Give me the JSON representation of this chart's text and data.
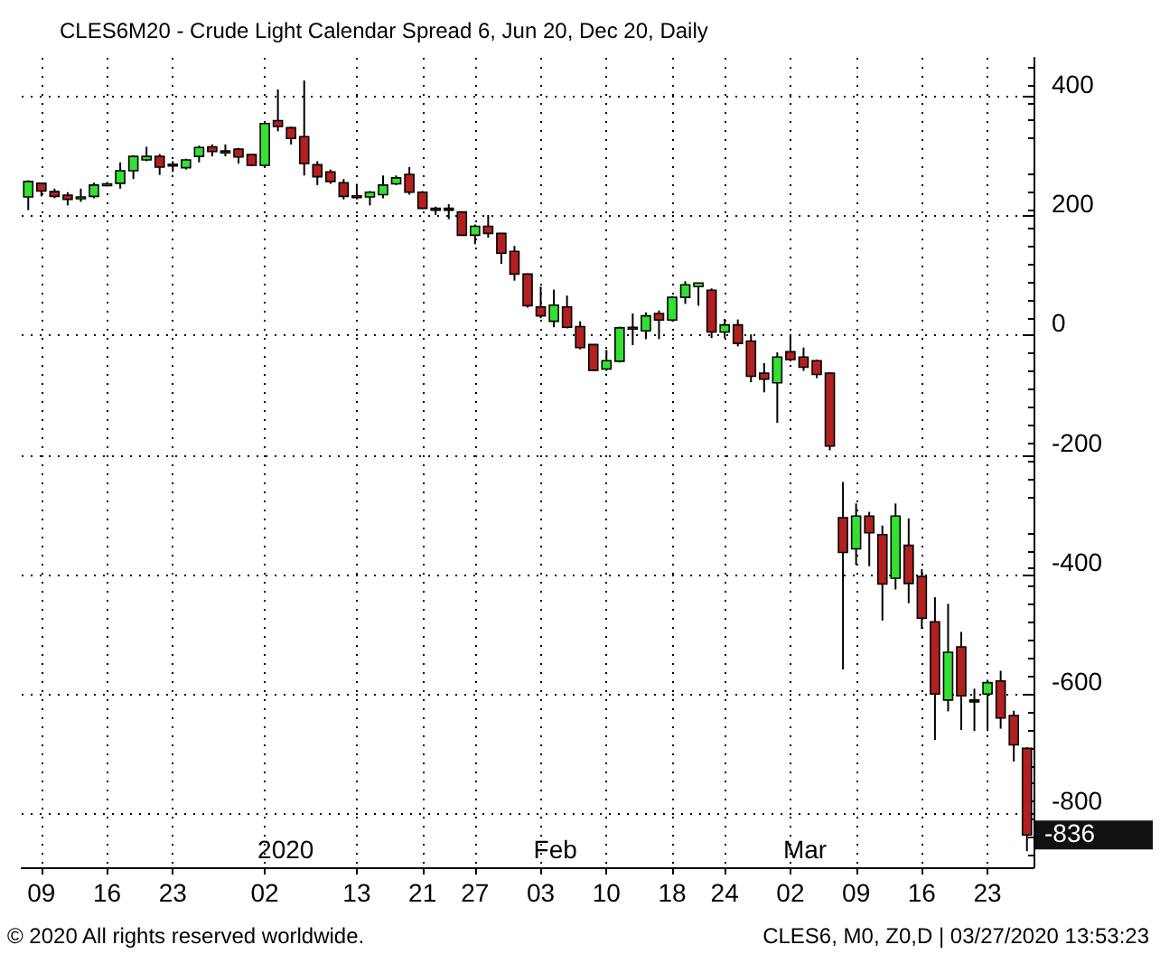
{
  "chart_data": {
    "type": "candlestick",
    "title": "CLES6M20 - Crude Light Calendar Spread 6, Jun 20, Dec 20, Daily",
    "categories": [
      null,
      "09",
      null,
      null,
      null,
      null,
      "16",
      null,
      null,
      null,
      null,
      "23",
      null,
      null,
      null,
      null,
      null,
      null,
      "02",
      null,
      null,
      null,
      null,
      null,
      null,
      "13",
      null,
      null,
      null,
      null,
      "21",
      null,
      null,
      null,
      "27",
      null,
      null,
      null,
      null,
      "03",
      null,
      null,
      null,
      null,
      "10",
      null,
      null,
      null,
      null,
      "18",
      null,
      null,
      null,
      "24",
      null,
      null,
      null,
      null,
      "02",
      null,
      null,
      null,
      null,
      "09",
      null,
      null,
      null,
      null,
      "16",
      null,
      null,
      null,
      null,
      "23",
      null,
      null,
      null
    ],
    "ohlc": [
      [
        232,
        260,
        210,
        258
      ],
      [
        255,
        256,
        233,
        242
      ],
      [
        241,
        246,
        230,
        233
      ],
      [
        235,
        240,
        218,
        228
      ],
      [
        230,
        246,
        224,
        232
      ],
      [
        233,
        256,
        230,
        252
      ],
      [
        252,
        257,
        250,
        254
      ],
      [
        255,
        290,
        246,
        276
      ],
      [
        276,
        302,
        262,
        300
      ],
      [
        294,
        316,
        292,
        300
      ],
      [
        300,
        304,
        269,
        282
      ],
      [
        287,
        292,
        274,
        286
      ],
      [
        281,
        296,
        278,
        294
      ],
      [
        300,
        318,
        290,
        315
      ],
      [
        316,
        320,
        300,
        308
      ],
      [
        308,
        320,
        300,
        309
      ],
      [
        312,
        314,
        288,
        299
      ],
      [
        303,
        304,
        284,
        285
      ],
      [
        285,
        357,
        284,
        355
      ],
      [
        360,
        412,
        342,
        350
      ],
      [
        348,
        350,
        320,
        330
      ],
      [
        333,
        427,
        268,
        288
      ],
      [
        286,
        292,
        252,
        266
      ],
      [
        274,
        278,
        254,
        258
      ],
      [
        256,
        262,
        228,
        233
      ],
      [
        234,
        254,
        228,
        233
      ],
      [
        232,
        242,
        218,
        240
      ],
      [
        236,
        268,
        230,
        252
      ],
      [
        254,
        268,
        252,
        264
      ],
      [
        270,
        282,
        236,
        240
      ],
      [
        240,
        242,
        212,
        213
      ],
      [
        212,
        216,
        202,
        213
      ],
      [
        213,
        220,
        195,
        212
      ],
      [
        207,
        208,
        167,
        168
      ],
      [
        168,
        186,
        153,
        183
      ],
      [
        183,
        202,
        164,
        171
      ],
      [
        171,
        172,
        120,
        138
      ],
      [
        141,
        150,
        92,
        103
      ],
      [
        103,
        104,
        47,
        50
      ],
      [
        48,
        82,
        29,
        33
      ],
      [
        24,
        77,
        14,
        51
      ],
      [
        48,
        67,
        12,
        14
      ],
      [
        15,
        24,
        -23,
        -20
      ],
      [
        -15,
        -15,
        -59,
        -58
      ],
      [
        -56,
        -24,
        -59,
        -42
      ],
      [
        -43,
        15,
        -45,
        13
      ],
      [
        14,
        37,
        -16,
        13
      ],
      [
        8,
        39,
        -6,
        33
      ],
      [
        37,
        42,
        -6,
        26
      ],
      [
        26,
        66,
        24,
        64
      ],
      [
        64,
        91,
        53,
        85
      ],
      [
        82,
        88,
        50,
        88
      ],
      [
        76,
        79,
        -4,
        6
      ],
      [
        6,
        28,
        -4,
        18
      ],
      [
        18,
        27,
        -18,
        -13
      ],
      [
        -9,
        2,
        -78,
        -68
      ],
      [
        -63,
        -46,
        -95,
        -73
      ],
      [
        -79,
        -28,
        -146,
        -36
      ],
      [
        -27,
        1,
        -43,
        -40
      ],
      [
        -36,
        -20,
        -59,
        -53
      ],
      [
        -42,
        -40,
        -71,
        -65
      ],
      [
        -63,
        -61,
        -192,
        -185
      ],
      [
        -305,
        -245,
        -559,
        -363
      ],
      [
        -357,
        -281,
        -384,
        -302
      ],
      [
        -302,
        -295,
        -386,
        -330
      ],
      [
        -333,
        -318,
        -477,
        -416
      ],
      [
        -406,
        -281,
        -425,
        -302
      ],
      [
        -351,
        -306,
        -448,
        -415
      ],
      [
        -403,
        -391,
        -491,
        -473
      ],
      [
        -479,
        -438,
        -677,
        -600
      ],
      [
        -610,
        -449,
        -629,
        -530
      ],
      [
        -521,
        -496,
        -660,
        -603
      ],
      [
        -610,
        -591,
        -662,
        -611
      ],
      [
        -600,
        -576,
        -662,
        -581
      ],
      [
        -578,
        -561,
        -658,
        -640
      ],
      [
        -636,
        -628,
        -713,
        -685
      ],
      [
        -691,
        -689,
        -863,
        -836
      ]
    ],
    "colors": [
      "#33e033",
      "#b22020",
      "#b22020",
      "#b22020",
      "#33e033",
      "#33e033",
      "#33e033",
      "#33e033",
      "#33e033",
      "#33e033",
      "#b22020",
      "#b22020",
      "#33e033",
      "#33e033",
      "#b22020",
      "#33e033",
      "#b22020",
      "#b22020",
      "#33e033",
      "#b22020",
      "#b22020",
      "#b22020",
      "#b22020",
      "#b22020",
      "#b22020",
      "#b22020",
      "#33e033",
      "#33e033",
      "#33e033",
      "#b22020",
      "#b22020",
      "#33e033",
      "#b22020",
      "#b22020",
      "#33e033",
      "#b22020",
      "#b22020",
      "#b22020",
      "#b22020",
      "#b22020",
      "#33e033",
      "#b22020",
      "#b22020",
      "#b22020",
      "#33e033",
      "#33e033",
      "#b22020",
      "#33e033",
      "#b22020",
      "#33e033",
      "#33e033",
      "#33e033",
      "#b22020",
      "#33e033",
      "#b22020",
      "#b22020",
      "#b22020",
      "#33e033",
      "#b22020",
      "#b22020",
      "#b22020",
      "#b22020",
      "#b22020",
      "#33e033",
      "#b22020",
      "#b22020",
      "#33e033",
      "#b22020",
      "#b22020",
      "#b22020",
      "#33e033",
      "#b22020",
      "#b22020",
      "#33e033",
      "#b22020",
      "#b22020",
      "#b22020"
    ],
    "ylim": [
      -890,
      465
    ],
    "yticks": [
      -800,
      -600,
      -400,
      -200,
      0,
      200,
      400
    ],
    "grid": true,
    "annotations": [
      "2020",
      "Feb",
      "Mar",
      "-836",
      "© 2020 All rights reserved worldwide.",
      "CLES6, M0, Z0,D | 03/27/2020 13:53:23"
    ]
  }
}
